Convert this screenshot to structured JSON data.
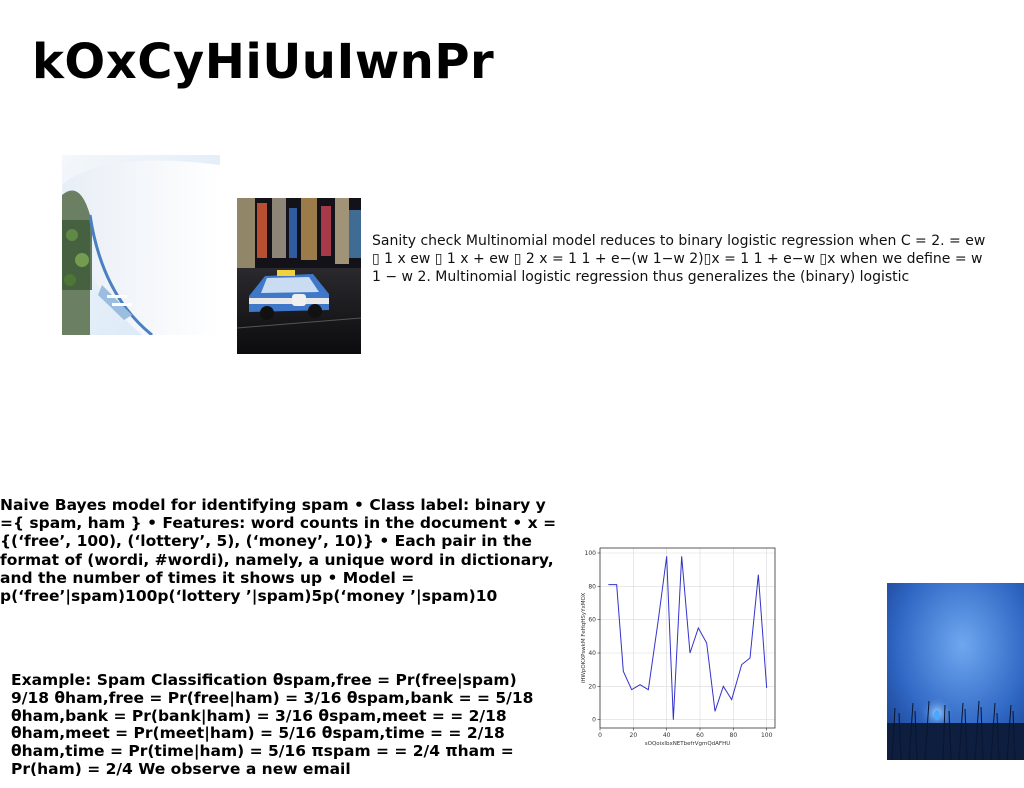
{
  "slide": {
    "title": "kOxCyHiUuIwnPr",
    "sanity_text": "Sanity check Multinomial model reduces to binary logistic regression when C = 2. = ew ▯ 1 x ew ▯ 1 x + ew ▯ 2 x = 1 1 + e−(w 1−w 2)▯x = 1 1 + e−w ▯x when we define = w 1 − w 2. Multinomial logistic regression thus generalizes the (binary) logistic",
    "naive_bayes_text": "Naive Bayes model for identifying spam • Class label: binary y ={ spam, ham } • Features: word counts in the document • x = {(‘free’, 100), (‘lottery’, 5), (‘money’, 10)} • Each pair in the format of (wordi, #wordi), namely, a unique word in dictionary, and the number of times it shows up • Model = p(‘free’|spam)100p(‘lottery ’|spam)5p(‘money ’|spam)10",
    "example_text": "Example: Spam Classification θspam,free = Pr(free|spam) 9/18 θham,free = Pr(free|ham) = 3/16 θspam,bank = = 5/18 θham,bank = Pr(bank|ham) = 3/16 θspam,meet = = 2/18 θham,meet = Pr(meet|ham) = 5/16 θspam,time = = 2/18 θham,time = Pr(time|ham) = 5/16 πspam = = 2/4 πham = Pr(ham) = 2/4 We observe a new email"
  },
  "colors": {
    "line": "#3333cc",
    "grid": "#d9d9d9"
  },
  "chart_data": {
    "type": "line",
    "xlabel": "sOQoixlbxNETbefrVgmQdAFHU",
    "ylabel": "iHWpOKXPswkM FeHqHSyYxMOX",
    "xlim": [
      0,
      105
    ],
    "ylim": [
      -5,
      103
    ],
    "xticks": [
      0,
      20,
      40,
      60,
      80,
      100
    ],
    "yticks": [
      0,
      20,
      40,
      60,
      80,
      100
    ],
    "grid": true,
    "series": [
      {
        "x": [
          5,
          10,
          14,
          19,
          24,
          29,
          35,
          40,
          44,
          49,
          54,
          59,
          64,
          69,
          74,
          79,
          85,
          90,
          95,
          100
        ],
        "values": [
          81,
          81,
          29,
          18,
          21,
          18,
          60,
          98,
          0,
          98,
          40,
          55,
          46,
          5,
          20,
          12,
          33,
          37,
          87,
          19
        ]
      }
    ]
  }
}
